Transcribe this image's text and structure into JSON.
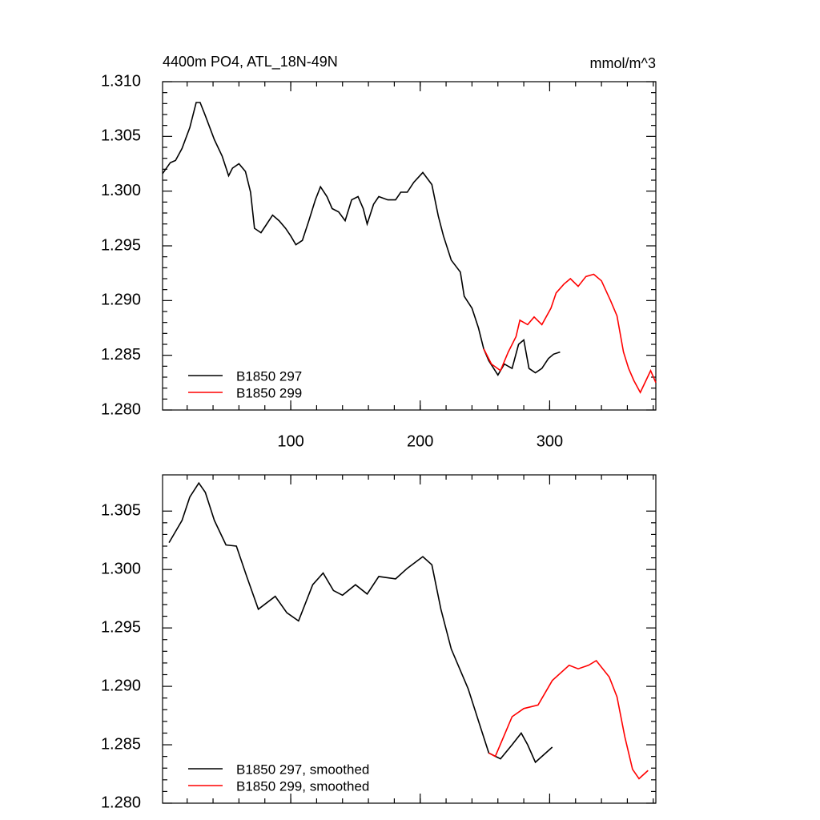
{
  "chart_data": [
    {
      "type": "line",
      "title": "4400m PO4, ATL_18N-49N",
      "units": "mmol/m^3",
      "xlim": [
        1,
        382
      ],
      "xticks": [
        100,
        200,
        300
      ],
      "ylim": [
        1.28,
        1.31
      ],
      "yticks": [
        {
          "value": 1.28,
          "label": "1.280"
        },
        1.285,
        {
          "value": 1.29,
          "label": "1.290"
        },
        1.295,
        {
          "value": 1.3,
          "label": "1.300"
        },
        1.305,
        {
          "value": 1.31,
          "label": "1.310"
        }
      ],
      "legend": "lower left",
      "series": [
        {
          "name": "B1850 297",
          "color": "#000000",
          "x": [
            1,
            7,
            11,
            16,
            22,
            27,
            30,
            34,
            41,
            47,
            52,
            55,
            60,
            65,
            69,
            72,
            77,
            81,
            86,
            91,
            96,
            100,
            104,
            109,
            114,
            119,
            123,
            128,
            132,
            137,
            142,
            147,
            152,
            156,
            159,
            164,
            168,
            175,
            181,
            185,
            190,
            195,
            202,
            209,
            214,
            218,
            224,
            231,
            234,
            240,
            245,
            249,
            253,
            260,
            265,
            271,
            276,
            280,
            284,
            289,
            294,
            299,
            303,
            308
          ],
          "values": [
            1.3016,
            1.3026,
            1.3028,
            1.3039,
            1.3058,
            1.3081,
            1.3081,
            1.3069,
            1.3047,
            1.3032,
            1.3014,
            1.3021,
            1.3025,
            1.3018,
            1.2999,
            1.2966,
            1.2962,
            1.2969,
            1.2978,
            1.2973,
            1.2966,
            1.2959,
            1.2951,
            1.2955,
            1.2973,
            1.2992,
            1.3004,
            1.2995,
            1.2984,
            1.2981,
            1.2973,
            1.2992,
            1.2995,
            1.2984,
            1.297,
            1.2988,
            1.2995,
            1.2992,
            1.2992,
            1.2999,
            1.2999,
            1.3008,
            1.3017,
            1.3006,
            1.2977,
            1.2959,
            1.2937,
            1.2926,
            1.2904,
            1.2893,
            1.2875,
            1.2856,
            1.2845,
            1.2832,
            1.2842,
            1.2838,
            1.286,
            1.2864,
            1.2838,
            1.2834,
            1.2838,
            1.2847,
            1.2851,
            1.2853
          ]
        },
        {
          "name": "B1850 299",
          "color": "#ff0000",
          "x": [
            249,
            255,
            262,
            268,
            274,
            277,
            283,
            288,
            294,
            301,
            305,
            311,
            316,
            322,
            328,
            334,
            340,
            347,
            352,
            357,
            361,
            365,
            370,
            376,
            378,
            382
          ],
          "values": [
            1.2856,
            1.2842,
            1.2836,
            1.2853,
            1.2867,
            1.2882,
            1.2878,
            1.2885,
            1.2878,
            1.2893,
            1.2907,
            1.2915,
            1.292,
            1.2913,
            1.2922,
            1.2924,
            1.2918,
            1.29,
            1.2886,
            1.2853,
            1.2838,
            1.2827,
            1.2816,
            1.2831,
            1.2836,
            1.2825
          ]
        }
      ]
    },
    {
      "type": "line",
      "xlim": [
        1,
        382
      ],
      "xticks": [
        100,
        200,
        300
      ],
      "ylim": [
        1.28,
        1.3081
      ],
      "yticks": [
        {
          "value": 1.28,
          "label": "1.280"
        },
        1.285,
        {
          "value": 1.29,
          "label": "1.290"
        },
        1.295,
        {
          "value": 1.3,
          "label": "1.300"
        },
        1.305
      ],
      "legend": "lower left",
      "series": [
        {
          "name": "B1850 297, smoothed",
          "color": "#000000",
          "x": [
            6,
            16,
            22,
            29,
            34,
            41,
            50,
            58,
            66,
            75,
            88,
            97,
            106,
            117,
            125,
            133,
            140,
            150,
            159,
            168,
            181,
            190,
            202,
            209,
            216,
            224,
            237,
            246,
            253,
            262,
            271,
            278,
            283,
            289,
            302
          ],
          "values": [
            1.3023,
            1.3042,
            1.3062,
            1.3074,
            1.3066,
            1.3042,
            1.3021,
            1.302,
            1.2994,
            1.2966,
            1.2977,
            1.2963,
            1.2956,
            1.2987,
            1.2997,
            1.2982,
            1.2978,
            1.2987,
            1.2979,
            1.2994,
            1.2992,
            1.3001,
            1.3011,
            1.3004,
            1.2966,
            1.2932,
            1.2898,
            1.2867,
            1.2843,
            1.2838,
            1.285,
            1.286,
            1.285,
            1.2835,
            1.2848
          ]
        },
        {
          "name": "B1850 299, smoothed",
          "color": "#ff0000",
          "x": [
            253,
            258,
            271,
            280,
            291,
            302,
            315,
            322,
            330,
            336,
            346,
            352,
            358,
            364,
            369,
            376
          ],
          "values": [
            1.2843,
            1.284,
            1.2874,
            1.2881,
            1.2884,
            1.2905,
            1.2918,
            1.2915,
            1.2918,
            1.2922,
            1.2908,
            1.2891,
            1.2857,
            1.2829,
            1.2821,
            1.2828
          ]
        }
      ]
    }
  ]
}
